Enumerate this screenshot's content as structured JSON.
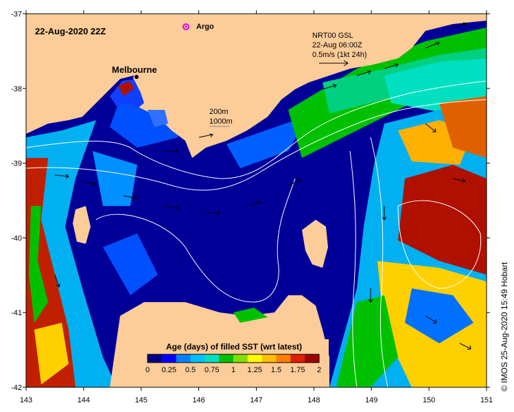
{
  "map": {
    "timestamp": "22-Aug-2020 22Z",
    "argo_label": "Argo",
    "city_label": "Melbourne",
    "contour_legend": [
      "200m",
      "1000m"
    ],
    "current_info": [
      "NRT00 GSL",
      "22-Aug 06:00Z",
      "0.5m/s (1kt 24h)"
    ],
    "colorbar_title": "Age (days) of filled SST (wrt latest)",
    "colorbar_ticks": [
      "0",
      "0.25",
      "0.5",
      "0.75",
      "1",
      "1.25",
      "1.5",
      "1.75",
      "2"
    ],
    "colorbar_colors": [
      "#000080",
      "#0000ff",
      "#0080ff",
      "#00c0ff",
      "#00e0c0",
      "#00c000",
      "#80e000",
      "#ffff00",
      "#ffc000",
      "#ff8000",
      "#e02000",
      "#a00000"
    ],
    "x_ticks": [
      "143",
      "144",
      "145",
      "146",
      "147",
      "148",
      "149",
      "150",
      "151"
    ],
    "y_ticks": [
      "-37",
      "-38",
      "-39",
      "-40",
      "-41",
      "-42"
    ],
    "credit": "© IMOS 25-Aug-2020 15:49 Hobart",
    "land_color": "#fccc99"
  }
}
